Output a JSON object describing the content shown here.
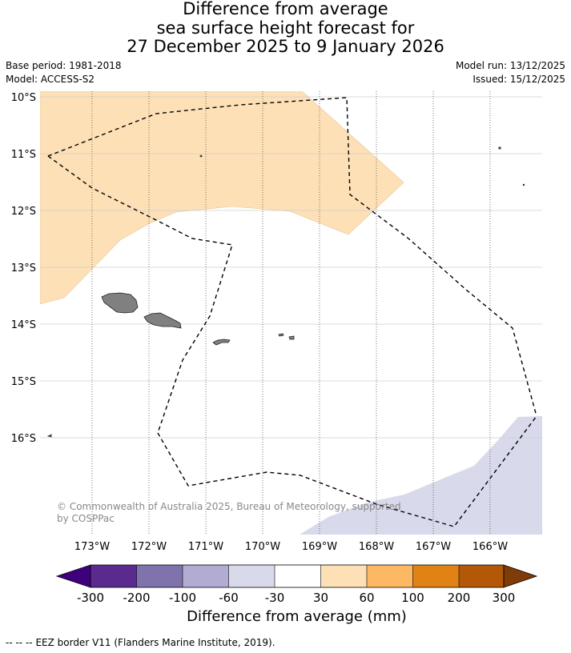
{
  "title": {
    "line1": "Difference from average",
    "line2": "sea surface height forecast for",
    "line3": "27 December 2025 to 9 January 2026"
  },
  "meta": {
    "base_period": "Base period: 1981-2018",
    "model": "Model: ACCESS-S2",
    "model_run": "Model run: 13/12/2025",
    "issued": "Issued: 15/12/2025"
  },
  "map": {
    "lat_labels": [
      "10°S",
      "11°S",
      "12°S",
      "13°S",
      "14°S",
      "15°S",
      "16°S"
    ],
    "lon_labels": [
      "173°W",
      "172°W",
      "171°W",
      "170°W",
      "169°W",
      "168°W",
      "167°W",
      "166°W"
    ],
    "copyright": "© Commonwealth of Australia 2025, Bureau of Meteorology, supported by COSPPac",
    "positive_anomaly_color": "#fde0b6",
    "negative_anomaly_color": "#d8d9ea",
    "land_color": "#808080"
  },
  "colorbar": {
    "title": "Difference from average (mm)",
    "ticks": [
      "-300",
      "-200",
      "-100",
      "-60",
      "-30",
      "30",
      "60",
      "100",
      "200",
      "300"
    ],
    "colors": [
      "#3f007d",
      "#5a2a8f",
      "#8073ac",
      "#b2abd2",
      "#d8daeb",
      "#ffffff",
      "#fee0b6",
      "#fdb863",
      "#e08214",
      "#b35806",
      "#7f3b08"
    ]
  },
  "footer": {
    "legend_symbol": "-- -- --",
    "legend_text": "EEZ border V11 (Flanders Marine Institute, 2019)."
  }
}
